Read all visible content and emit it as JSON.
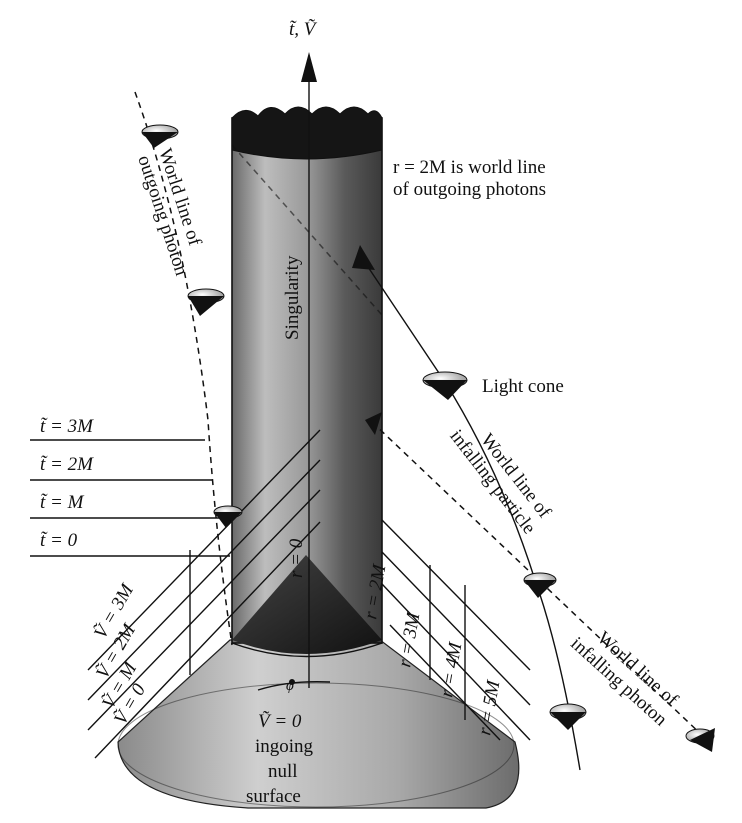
{
  "axis": {
    "label": "t̃, Ṽ"
  },
  "cylinder": {
    "label": "Singularity"
  },
  "labels": {
    "r2m_line1": "r = 2M is world line",
    "r2m_line2": "of outgoing photons",
    "outgoing_photon_1": "World line of",
    "outgoing_photon_2": "outgoing photon",
    "light_cone": "Light cone",
    "infalling_particle_1": "World line of",
    "infalling_particle_2": "infalling particle",
    "infalling_photon_1": "World line of",
    "infalling_photon_2": "infalling photon",
    "cone_line1": "Ṽ = 0",
    "cone_line2": "ingoing",
    "cone_line3": "null",
    "cone_line4": "surface",
    "r_zero": "r = 0",
    "r_2m": "r = 2M",
    "phi": "ϕ"
  },
  "t_levels": [
    "t̃ = 3M",
    "t̃ = 2M",
    "t̃ = M",
    "t̃ = 0"
  ],
  "v_levels": [
    "Ṽ = 3M",
    "Ṽ = 2M",
    "Ṽ = M",
    "Ṽ = 0"
  ],
  "r_levels": [
    "r = 3M",
    "r = 4M",
    "r = 5M"
  ]
}
